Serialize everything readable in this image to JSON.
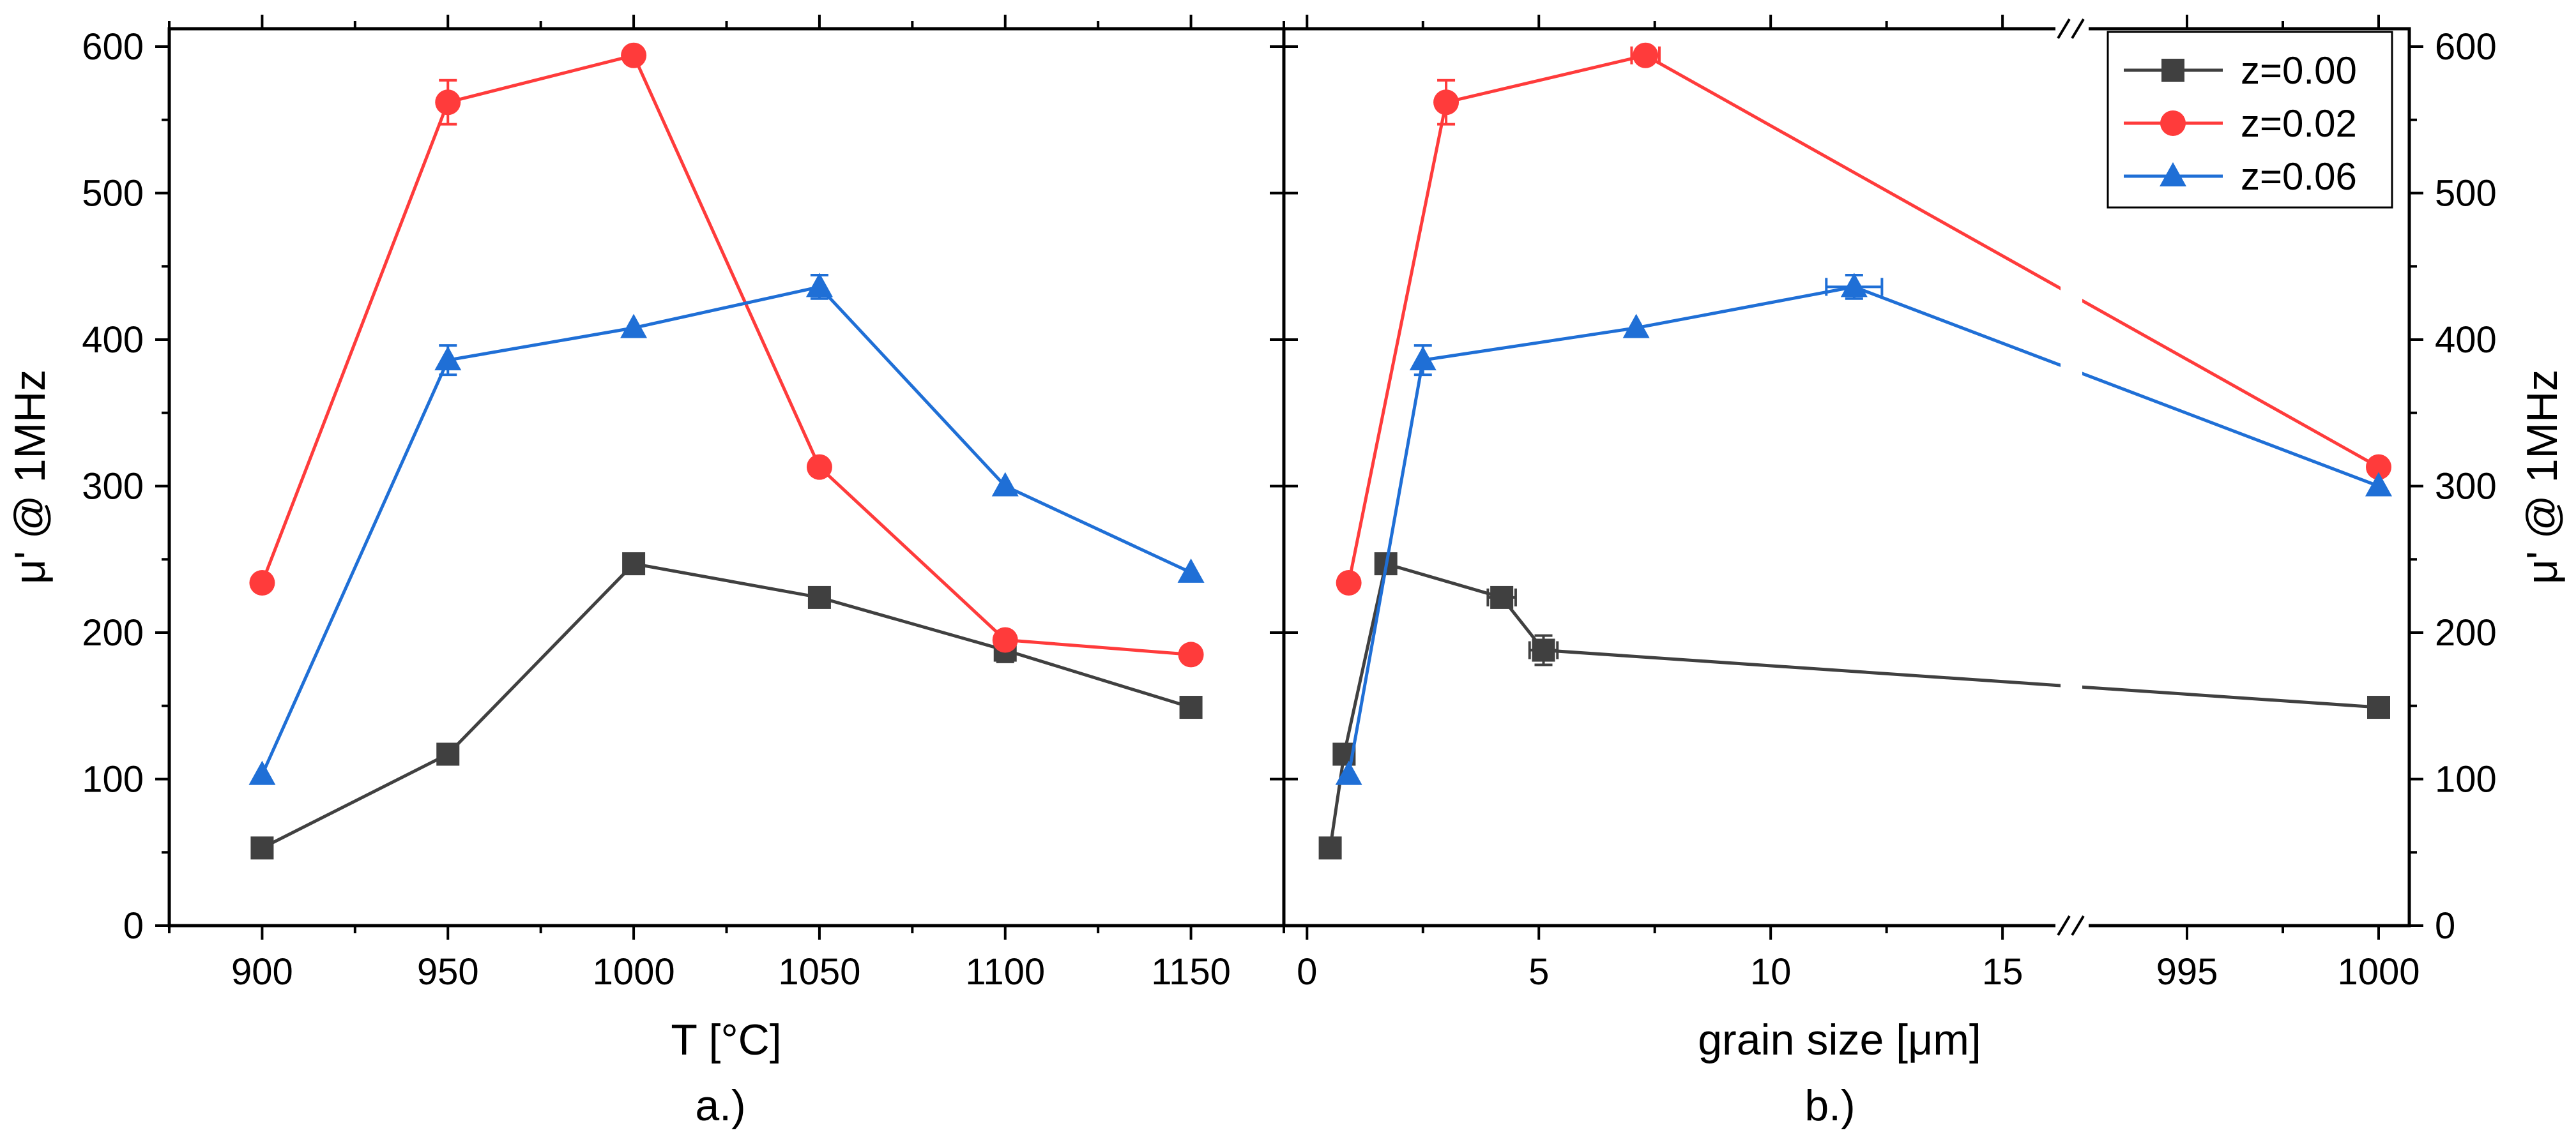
{
  "chart_data": [
    {
      "type": "line",
      "panel_label": "a.)",
      "xlabel": "T [°C]",
      "ylabel": "μ' @ 1MHz",
      "xlim": [
        875,
        1175
      ],
      "ylim": [
        0,
        600
      ],
      "xticks": [
        900,
        950,
        1000,
        1050,
        1100,
        1150
      ],
      "yticks": [
        0,
        100,
        200,
        300,
        400,
        500,
        600
      ],
      "series": [
        {
          "name": "z=0.00",
          "color": "#404040",
          "marker": "square",
          "x": [
            900,
            950,
            1000,
            1050,
            1100,
            1150
          ],
          "y": [
            53,
            117,
            247,
            224,
            188,
            149
          ],
          "yerr": [
            0,
            0,
            0,
            0,
            8,
            0
          ]
        },
        {
          "name": "z=0.02",
          "color": "#ff3b3b",
          "marker": "circle",
          "x": [
            900,
            950,
            1000,
            1050,
            1100,
            1150
          ],
          "y": [
            234,
            562,
            594,
            313,
            195,
            185
          ],
          "yerr": [
            0,
            15,
            0,
            0,
            0,
            0
          ]
        },
        {
          "name": "z=0.06",
          "color": "#1f6fd6",
          "marker": "triangle",
          "x": [
            900,
            950,
            1000,
            1050,
            1100,
            1150
          ],
          "y": [
            103,
            386,
            408,
            436,
            300,
            241
          ],
          "yerr": [
            0,
            10,
            0,
            8,
            0,
            0
          ]
        }
      ]
    },
    {
      "type": "line",
      "panel_label": "b.)",
      "xlabel": "grain size [μm]",
      "ylabel": "μ' @ 1MHz",
      "x_break": {
        "left_range": [
          -0.5,
          16.5
        ],
        "right_range": [
          992,
          1000.8
        ]
      },
      "ylim": [
        0,
        600
      ],
      "xticks_left": [
        0,
        5,
        10,
        15
      ],
      "xticks_right": [
        995,
        1000
      ],
      "yticks": [
        0,
        100,
        200,
        300,
        400,
        500,
        600
      ],
      "series": [
        {
          "name": "z=0.00",
          "color": "#404040",
          "marker": "square",
          "x": [
            0.5,
            0.8,
            1.7,
            4.2,
            5.1,
            1000
          ],
          "y": [
            53,
            117,
            247,
            224,
            188,
            149
          ],
          "xerr": [
            0,
            0,
            0,
            0.3,
            0.3,
            0
          ],
          "yerr": [
            0,
            0,
            0,
            0,
            10,
            0
          ]
        },
        {
          "name": "z=0.02",
          "color": "#ff3b3b",
          "marker": "circle",
          "x": [
            0.9,
            3.0,
            7.3,
            1000
          ],
          "y": [
            234,
            562,
            594,
            313
          ],
          "xerr": [
            0,
            0,
            0.3,
            0
          ],
          "yerr": [
            0,
            15,
            0,
            0
          ]
        },
        {
          "name": "z=0.06",
          "color": "#1f6fd6",
          "marker": "triangle",
          "x": [
            0.9,
            2.5,
            7.1,
            11.8,
            1000
          ],
          "y": [
            103,
            386,
            408,
            436,
            300
          ],
          "xerr": [
            0,
            0,
            0,
            0.6,
            0
          ],
          "yerr": [
            0,
            10,
            0,
            8,
            0
          ]
        }
      ]
    }
  ],
  "legend": {
    "position": "top-right",
    "entries": [
      {
        "label": "z=0.00",
        "color": "#404040",
        "marker": "square"
      },
      {
        "label": "z=0.02",
        "color": "#ff3b3b",
        "marker": "circle"
      },
      {
        "label": "z=0.06",
        "color": "#1f6fd6",
        "marker": "triangle"
      }
    ]
  }
}
